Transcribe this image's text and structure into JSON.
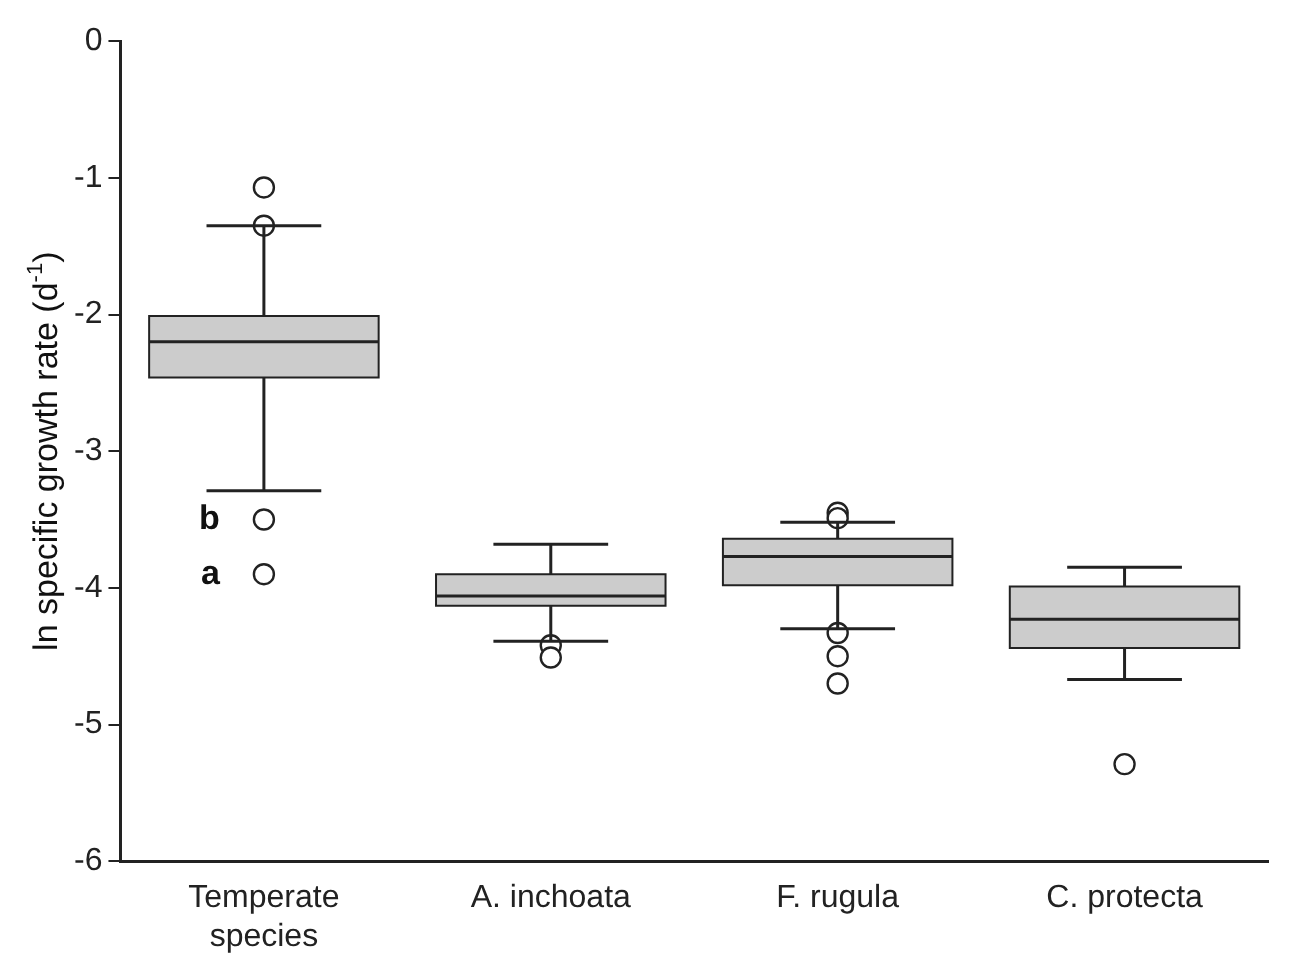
{
  "chart_data": {
    "type": "box",
    "ylabel": "ln specific growth rate (d$^{-1}$)",
    "categories": [
      "Temperate species",
      "A. inchoata",
      "F. rugula",
      "C. protecta"
    ],
    "color": "#cccccc",
    "boxes": [
      {
        "low": -3.29,
        "q1": -2.46,
        "median": -2.2,
        "q3": -2.01,
        "high": -1.35,
        "outliers": [
          -1.07,
          -1.35,
          -3.5,
          -3.9
        ]
      },
      {
        "low": -4.39,
        "q1": -4.13,
        "median": -4.06,
        "q3": -3.9,
        "high": -3.68,
        "outliers": [
          -4.42,
          -4.51
        ]
      },
      {
        "low": -4.3,
        "q1": -3.98,
        "median": -3.77,
        "q3": -3.64,
        "high": -3.52,
        "outliers": [
          -3.45,
          -3.49,
          -4.33,
          -4.5,
          -4.7
        ]
      },
      {
        "low": -4.67,
        "q1": -4.44,
        "median": -4.23,
        "q3": -3.99,
        "high": -3.85,
        "outliers": [
          -5.29
        ]
      }
    ],
    "ylim": [
      -6,
      0
    ],
    "yticks": [
      -6,
      -5,
      -4,
      -3,
      -2,
      -1,
      0
    ],
    "grid": false,
    "legend": false,
    "annotations": [
      "b",
      "a"
    ]
  }
}
